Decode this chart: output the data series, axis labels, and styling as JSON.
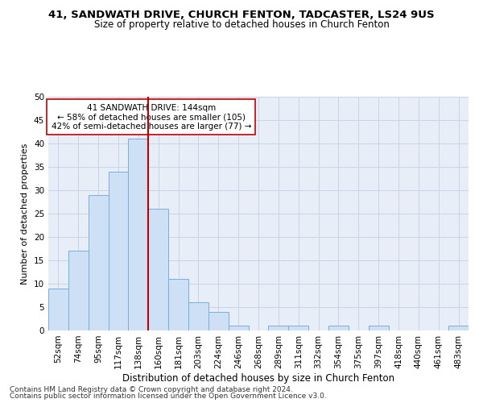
{
  "title_line1": "41, SANDWATH DRIVE, CHURCH FENTON, TADCASTER, LS24 9US",
  "title_line2": "Size of property relative to detached houses in Church Fenton",
  "xlabel": "Distribution of detached houses by size in Church Fenton",
  "ylabel": "Number of detached properties",
  "footnote1": "Contains HM Land Registry data © Crown copyright and database right 2024.",
  "footnote2": "Contains public sector information licensed under the Open Government Licence v3.0.",
  "categories": [
    "52sqm",
    "74sqm",
    "95sqm",
    "117sqm",
    "138sqm",
    "160sqm",
    "181sqm",
    "203sqm",
    "224sqm",
    "246sqm",
    "268sqm",
    "289sqm",
    "311sqm",
    "332sqm",
    "354sqm",
    "375sqm",
    "397sqm",
    "418sqm",
    "440sqm",
    "461sqm",
    "483sqm"
  ],
  "values": [
    9,
    17,
    29,
    34,
    41,
    26,
    11,
    6,
    4,
    1,
    0,
    1,
    1,
    0,
    1,
    0,
    1,
    0,
    0,
    0,
    1
  ],
  "bar_color": "#cde0f5",
  "bar_edge_color": "#7aafda",
  "vline_x": 4.5,
  "vline_color": "#c00000",
  "annotation_text": "41 SANDWATH DRIVE: 144sqm\n← 58% of detached houses are smaller (105)\n42% of semi-detached houses are larger (77) →",
  "annotation_box_color": "#ffffff",
  "annotation_box_edge": "#c00000",
  "ylim": [
    0,
    50
  ],
  "yticks": [
    0,
    5,
    10,
    15,
    20,
    25,
    30,
    35,
    40,
    45,
    50
  ],
  "grid_color": "#c8d4e8",
  "bg_color": "#e8eef8",
  "fig_bg_color": "#ffffff",
  "title1_fontsize": 9.5,
  "title2_fontsize": 8.5,
  "xlabel_fontsize": 8.5,
  "ylabel_fontsize": 8,
  "tick_fontsize": 7.5,
  "annot_fontsize": 7.5,
  "footnote_fontsize": 6.5
}
